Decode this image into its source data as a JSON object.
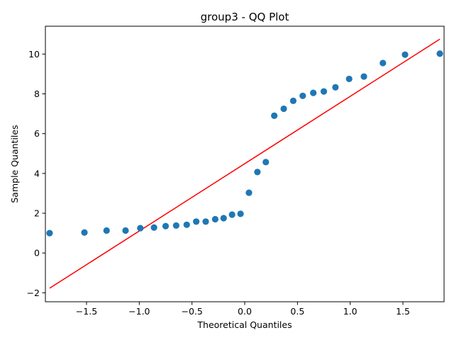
{
  "chart_data": {
    "type": "scatter",
    "title": "group3 - QQ Plot",
    "xlabel": "Theoretical Quantiles",
    "ylabel": "Sample Quantiles",
    "xlim": [
      -1.89,
      1.89
    ],
    "ylim": [
      -2.45,
      11.4
    ],
    "xticks": [
      -1.5,
      -1.0,
      -0.5,
      0.0,
      0.5,
      1.0,
      1.5
    ],
    "xtick_labels": [
      "−1.5",
      "−1.0",
      "−0.5",
      "0.0",
      "0.5",
      "1.0",
      "1.5"
    ],
    "yticks": [
      -2,
      0,
      2,
      4,
      6,
      8,
      10
    ],
    "ytick_labels": [
      "−2",
      "0",
      "2",
      "4",
      "6",
      "8",
      "10"
    ],
    "grid": false,
    "legend": "none",
    "series": [
      {
        "kind": "points",
        "color": "#1f77b4",
        "x": [
          -1.85,
          -1.52,
          -1.31,
          -1.13,
          -0.99,
          -0.86,
          -0.75,
          -0.65,
          -0.55,
          -0.46,
          -0.37,
          -0.28,
          -0.2,
          -0.12,
          -0.04,
          0.04,
          0.12,
          0.2,
          0.28,
          0.37,
          0.46,
          0.55,
          0.65,
          0.75,
          0.86,
          0.99,
          1.13,
          1.31,
          1.52,
          1.85
        ],
        "y": [
          1.0,
          1.03,
          1.13,
          1.13,
          1.25,
          1.28,
          1.35,
          1.38,
          1.42,
          1.58,
          1.58,
          1.7,
          1.75,
          1.93,
          1.97,
          3.03,
          4.07,
          4.57,
          6.9,
          7.25,
          7.65,
          7.9,
          8.05,
          8.12,
          8.33,
          8.75,
          8.87,
          9.55,
          9.97,
          10.02
        ]
      },
      {
        "kind": "line",
        "color": "#ff0000",
        "x": [
          -1.85,
          1.85
        ],
        "y": [
          -1.77,
          10.75
        ]
      }
    ]
  }
}
